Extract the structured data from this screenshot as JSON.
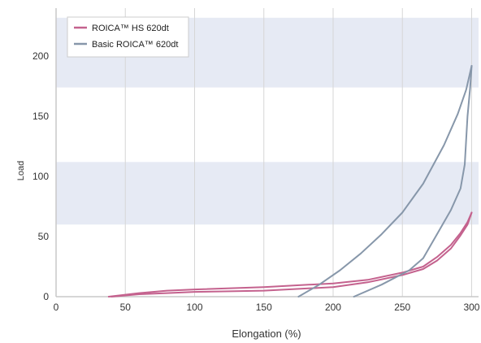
{
  "chart_data": {
    "type": "line",
    "title": "",
    "xlabel": "Elongation (%)",
    "ylabel": "Load",
    "xlim": [
      0,
      305
    ],
    "ylim": [
      0,
      240
    ],
    "x_ticks": [
      0,
      50,
      100,
      150,
      200,
      250,
      300
    ],
    "y_ticks": [
      0,
      50,
      100,
      150,
      200
    ],
    "y_tick_labels": [
      "0",
      "50",
      "100",
      "150",
      "200"
    ],
    "grid": "vertical",
    "bands": [
      [
        60,
        112
      ],
      [
        174,
        232
      ]
    ],
    "legend_position": "top-left",
    "series": [
      {
        "name": "ROICA™ HS 620dt",
        "color": "#c4628e",
        "segments": [
          [
            [
              38,
              0
            ],
            [
              60,
              3
            ],
            [
              80,
              5
            ],
            [
              100,
              6
            ],
            [
              150,
              8
            ],
            [
              200,
              11
            ],
            [
              225,
              14
            ],
            [
              250,
              20
            ],
            [
              265,
              25
            ],
            [
              275,
              33
            ],
            [
              285,
              43
            ],
            [
              292,
              53
            ],
            [
              297,
              62
            ],
            [
              300,
              70
            ]
          ],
          [
            [
              40,
              0
            ],
            [
              60,
              2
            ],
            [
              80,
              3
            ],
            [
              100,
              4
            ],
            [
              150,
              5
            ],
            [
              200,
              8
            ],
            [
              225,
              12
            ],
            [
              250,
              18
            ],
            [
              265,
              23
            ],
            [
              275,
              30
            ],
            [
              285,
              40
            ],
            [
              292,
              51
            ],
            [
              297,
              60
            ],
            [
              300,
              70
            ]
          ]
        ]
      },
      {
        "name": "Basic ROICA™ 620dt",
        "color": "#8797aa",
        "segments": [
          [
            [
              175,
              0
            ],
            [
              190,
              10
            ],
            [
              205,
              22
            ],
            [
              220,
              36
            ],
            [
              235,
              52
            ],
            [
              250,
              70
            ],
            [
              265,
              94
            ],
            [
              280,
              126
            ],
            [
              290,
              152
            ],
            [
              296,
              172
            ],
            [
              300,
              192
            ]
          ],
          [
            [
              215,
              0
            ],
            [
              235,
              10
            ],
            [
              255,
              22
            ],
            [
              265,
              32
            ],
            [
              275,
              52
            ],
            [
              285,
              72
            ],
            [
              292,
              90
            ],
            [
              295,
              110
            ],
            [
              297,
              150
            ],
            [
              299,
              175
            ],
            [
              300,
              192
            ]
          ]
        ]
      }
    ]
  }
}
